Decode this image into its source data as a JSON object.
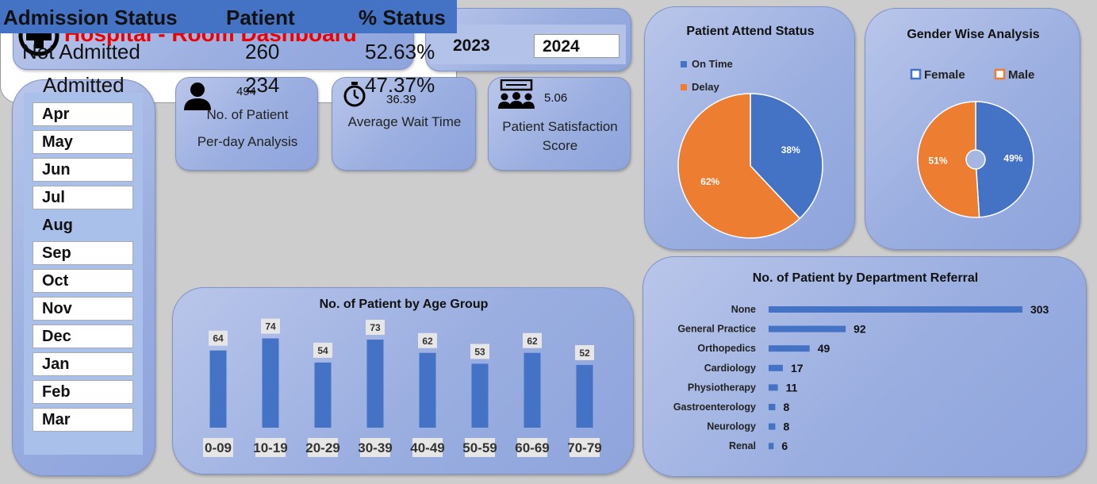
{
  "header": {
    "title": "Hospital - Room Dashboard",
    "icon": "medical-cross-icon"
  },
  "years": [
    "2023",
    "2024"
  ],
  "selected_year": "2024",
  "months": [
    "Apr",
    "May",
    "Jun",
    "Jul",
    "Aug",
    "Sep",
    "Oct",
    "Nov",
    "Dec",
    "Jan",
    "Feb",
    "Mar"
  ],
  "selected_month_plain": "Aug",
  "kpis": {
    "patients": {
      "value": "494",
      "label_line1": "No. of Patient",
      "label_line2": "Per-day Analysis",
      "icon": "person-icon"
    },
    "wait": {
      "value": "36.39",
      "label": "Average Wait Time",
      "icon": "stopwatch-icon"
    },
    "satisfaction": {
      "value": "5.06",
      "label_line1": "Patient Satisfaction",
      "label_line2": "Score",
      "icon": "group-presentation-icon"
    }
  },
  "admission": {
    "headers": [
      "Admission Status",
      "Patient",
      "% Status"
    ],
    "rows": [
      {
        "status": "Not Admitted",
        "patient": "260",
        "pct": "52.63%"
      },
      {
        "status": "Admitted",
        "patient": "234",
        "pct": "47.37%"
      }
    ]
  },
  "colors": {
    "blue": "#4472c4",
    "orange": "#ed7d31",
    "title_red": "#ee0000"
  },
  "chart_data": [
    {
      "id": "age",
      "type": "bar",
      "title": "No. of Patient by Age Group",
      "categories": [
        "0-09",
        "10-19",
        "20-29",
        "30-39",
        "40-49",
        "50-59",
        "60-69",
        "70-79"
      ],
      "values": [
        64,
        74,
        54,
        73,
        62,
        53,
        62,
        52
      ],
      "ylim": [
        0,
        100
      ],
      "grid": false
    },
    {
      "id": "attend",
      "type": "pie",
      "title": "Patient Attend Status",
      "categories": [
        "On Time",
        "Delay"
      ],
      "values": [
        38,
        62
      ],
      "labels": [
        "38%",
        "62%"
      ],
      "legend": "top-left"
    },
    {
      "id": "gender",
      "type": "pie",
      "title": "Gender Wise Analysis",
      "categories": [
        "Female",
        "Male"
      ],
      "values": [
        49,
        51
      ],
      "labels": [
        "49%",
        "51%"
      ],
      "legend": "top"
    },
    {
      "id": "dept",
      "type": "bar",
      "orientation": "horizontal",
      "title": "No. of Patient by Department Referral",
      "categories": [
        "None",
        "General Practice",
        "Orthopedics",
        "Cardiology",
        "Physiotherapy",
        "Gastroenterology",
        "Neurology",
        "Renal"
      ],
      "values": [
        303,
        92,
        49,
        17,
        11,
        8,
        8,
        6
      ],
      "grid": false
    }
  ]
}
